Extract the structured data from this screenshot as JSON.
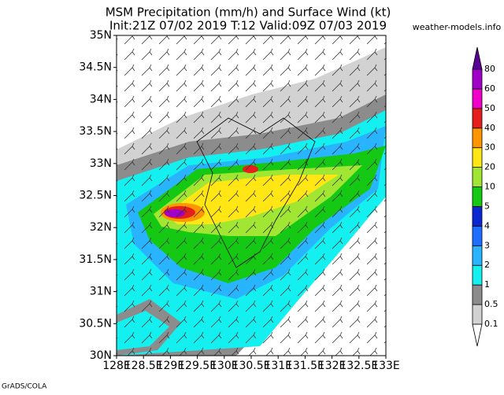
{
  "title": [
    "MSM Precipitation (mm/h) and Surface Wind (kt)",
    "Init:21Z 07/02 2019  T:12 Valid:09Z 07/03 2019"
  ],
  "site": "weather-models.info",
  "credit": "GrADS/COLA",
  "lat_labels": [
    "30N",
    "30.5N",
    "31N",
    "31.5N",
    "32N",
    "32.5N",
    "33N",
    "33.5N",
    "34N",
    "34.5N",
    "35N"
  ],
  "lon_labels": [
    "128E",
    "128.5E",
    "129E",
    "129.5E",
    "130E",
    "130.5E",
    "131E",
    "131.5E",
    "132E",
    "132.5E",
    "133E"
  ],
  "colorbar": {
    "levels": [
      "0.1",
      "0.5",
      "1",
      "2",
      "3",
      "4",
      "5",
      "10",
      "20",
      "30",
      "40",
      "50",
      "60",
      "80"
    ],
    "colors": [
      "#ffffff",
      "#d2d2d2",
      "#8c8c8c",
      "#14f0f0",
      "#28b4ff",
      "#1e6eff",
      "#0a28d2",
      "#14c814",
      "#a0e632",
      "#ffe614",
      "#ff9600",
      "#e61e1e",
      "#f000c8",
      "#a000c8",
      "#5a0096"
    ]
  }
}
